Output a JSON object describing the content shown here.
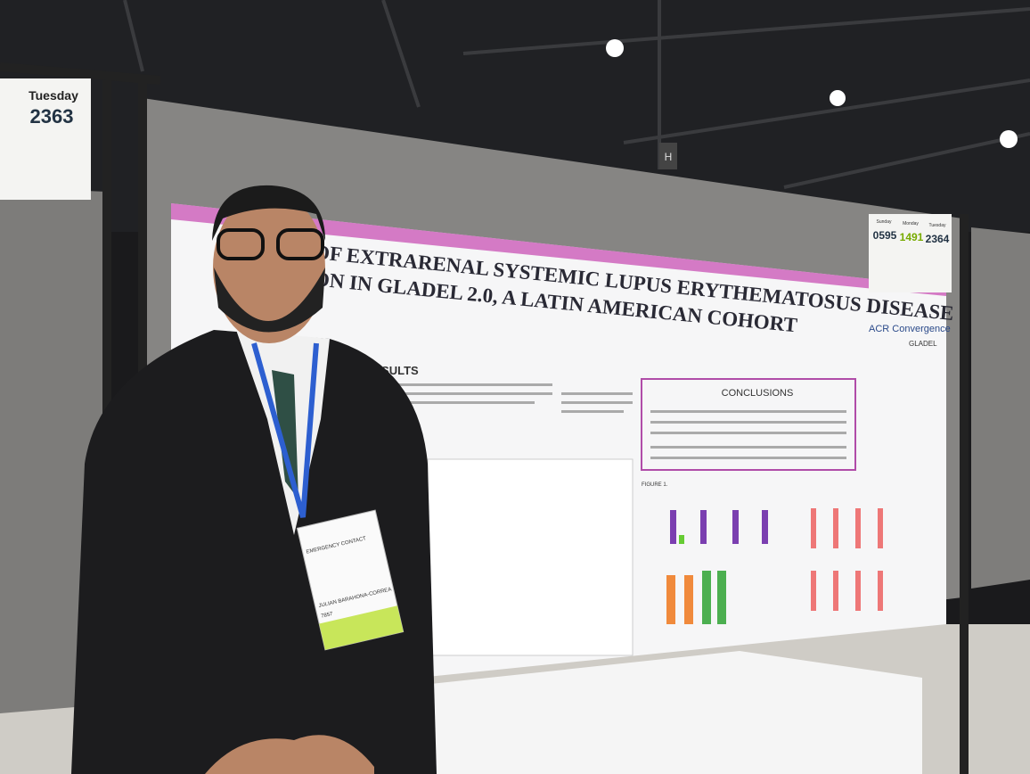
{
  "left_sign": {
    "day": "Tuesday",
    "number": "2363"
  },
  "pillar_label": "H",
  "poster": {
    "title_lines": [
      "Y OF EXTRARENAL SYSTEMIC LUPUS ERYTHEMATOSUS DISEASE",
      "TION IN GLADEL 2.0, A LATIN AMERICAN COHORT"
    ],
    "results_heading": "RESULTS",
    "conclusions_heading": "CONCLUSIONS",
    "figure_label": "FIGURE 1.",
    "logo_text": "ACR Convergence",
    "logo_sub": "GLADEL"
  },
  "right_sign": {
    "days": [
      "Sunday",
      "Monday",
      "Tuesday"
    ],
    "numbers": [
      "0595",
      "1491",
      "2364"
    ]
  },
  "badge": {
    "header": "EMERGENCY CONTACT",
    "name": "JULIAN BARAHONA-CORREA",
    "number": "7857"
  }
}
